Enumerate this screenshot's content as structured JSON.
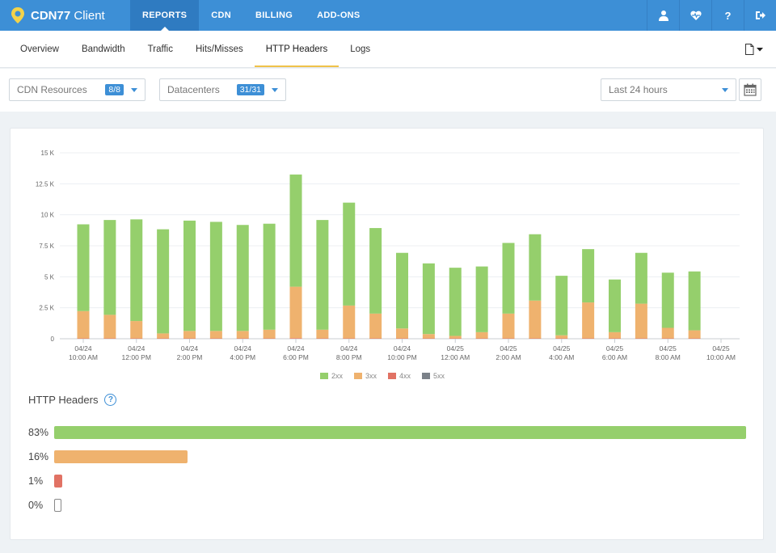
{
  "header": {
    "brand": {
      "name_bold": "CDN77",
      "name_rest": " Client"
    },
    "nav": [
      {
        "label": "REPORTS",
        "active": true
      },
      {
        "label": "CDN",
        "active": false
      },
      {
        "label": "BILLING",
        "active": false
      },
      {
        "label": "ADD-ONS",
        "active": false
      }
    ],
    "icons": [
      "user-icon",
      "heartbeat-icon",
      "help-icon",
      "logout-icon"
    ],
    "help_glyph": "?"
  },
  "subnav": {
    "tabs": [
      {
        "label": "Overview",
        "active": false
      },
      {
        "label": "Bandwidth",
        "active": false
      },
      {
        "label": "Traffic",
        "active": false
      },
      {
        "label": "Hits/Misses",
        "active": false
      },
      {
        "label": "HTTP Headers",
        "active": true
      },
      {
        "label": "Logs",
        "active": false
      }
    ],
    "export_icon": "document-icon"
  },
  "filters": {
    "cdn_resources": {
      "label": "CDN Resources",
      "badge": "8/8"
    },
    "datacenters": {
      "label": "Datacenters",
      "badge": "31/31"
    },
    "period": {
      "label": "Last 24 hours"
    },
    "calendar_icon": "calendar-icon"
  },
  "colors": {
    "accent": "#3d8fd6",
    "2xx": "#95cf6c",
    "3xx": "#efb26e",
    "4xx": "#e17264",
    "5xx": "#7b8189"
  },
  "chart_data": {
    "type": "bar",
    "stacked": true,
    "categories": [
      "04/24 10:00 AM",
      "04/24 11:00 AM",
      "04/24 12:00 PM",
      "04/24 1:00 PM",
      "04/24 2:00 PM",
      "04/24 3:00 PM",
      "04/24 4:00 PM",
      "04/24 5:00 PM",
      "04/24 6:00 PM",
      "04/24 7:00 PM",
      "04/24 8:00 PM",
      "04/24 9:00 PM",
      "04/24 10:00 PM",
      "04/24 11:00 PM",
      "04/25 12:00 AM",
      "04/25 1:00 AM",
      "04/25 2:00 AM",
      "04/25 3:00 AM",
      "04/25 4:00 AM",
      "04/25 5:00 AM",
      "04/25 6:00 AM",
      "04/25 7:00 AM",
      "04/25 8:00 AM",
      "04/25 9:00 AM",
      "04/25 10:00 AM"
    ],
    "tick_labels": [
      {
        "date": "04/24",
        "time": "10:00 AM"
      },
      {
        "date": "04/24",
        "time": "12:00 PM"
      },
      {
        "date": "04/24",
        "time": "2:00 PM"
      },
      {
        "date": "04/24",
        "time": "4:00 PM"
      },
      {
        "date": "04/24",
        "time": "6:00 PM"
      },
      {
        "date": "04/24",
        "time": "8:00 PM"
      },
      {
        "date": "04/24",
        "time": "10:00 PM"
      },
      {
        "date": "04/25",
        "time": "12:00 AM"
      },
      {
        "date": "04/25",
        "time": "2:00 AM"
      },
      {
        "date": "04/25",
        "time": "4:00 AM"
      },
      {
        "date": "04/25",
        "time": "6:00 AM"
      },
      {
        "date": "04/25",
        "time": "8:00 AM"
      },
      {
        "date": "04/25",
        "time": "10:00 AM"
      }
    ],
    "series": [
      {
        "name": "2xx",
        "values": [
          7000,
          7650,
          8200,
          8400,
          8900,
          8800,
          8550,
          8550,
          9050,
          8850,
          8300,
          6900,
          6100,
          5700,
          5500,
          5300,
          5700,
          5350,
          4800,
          4300,
          4250,
          4100,
          4450,
          4750,
          0
        ]
      },
      {
        "name": "3xx",
        "values": [
          2200,
          1900,
          1400,
          400,
          600,
          600,
          600,
          700,
          4150,
          700,
          2650,
          2000,
          800,
          350,
          200,
          500,
          2000,
          3050,
          250,
          2900,
          500,
          2800,
          850,
          650,
          0
        ]
      },
      {
        "name": "4xx",
        "values": [
          30,
          30,
          30,
          30,
          30,
          30,
          30,
          30,
          50,
          30,
          30,
          30,
          30,
          30,
          30,
          30,
          30,
          30,
          30,
          30,
          30,
          30,
          30,
          30,
          0
        ]
      },
      {
        "name": "5xx",
        "values": [
          0,
          0,
          0,
          0,
          0,
          0,
          0,
          0,
          0,
          0,
          0,
          0,
          0,
          0,
          0,
          0,
          0,
          0,
          0,
          0,
          0,
          0,
          0,
          0,
          0
        ]
      }
    ],
    "y_ticks": [
      "0",
      "2.5 K",
      "5 K",
      "7.5 K",
      "10 K",
      "12.5 K",
      "15 K"
    ],
    "ylim": [
      0,
      15000
    ],
    "grid": true,
    "legend_position": "bottom"
  },
  "summary": {
    "title": "HTTP Headers",
    "rows": [
      {
        "label": "83%",
        "value": 83,
        "series": "2xx"
      },
      {
        "label": "16%",
        "value": 16,
        "series": "3xx"
      },
      {
        "label": "1%",
        "value": 1,
        "series": "4xx"
      },
      {
        "label": "0%",
        "value": 0,
        "series": "5xx"
      }
    ]
  }
}
